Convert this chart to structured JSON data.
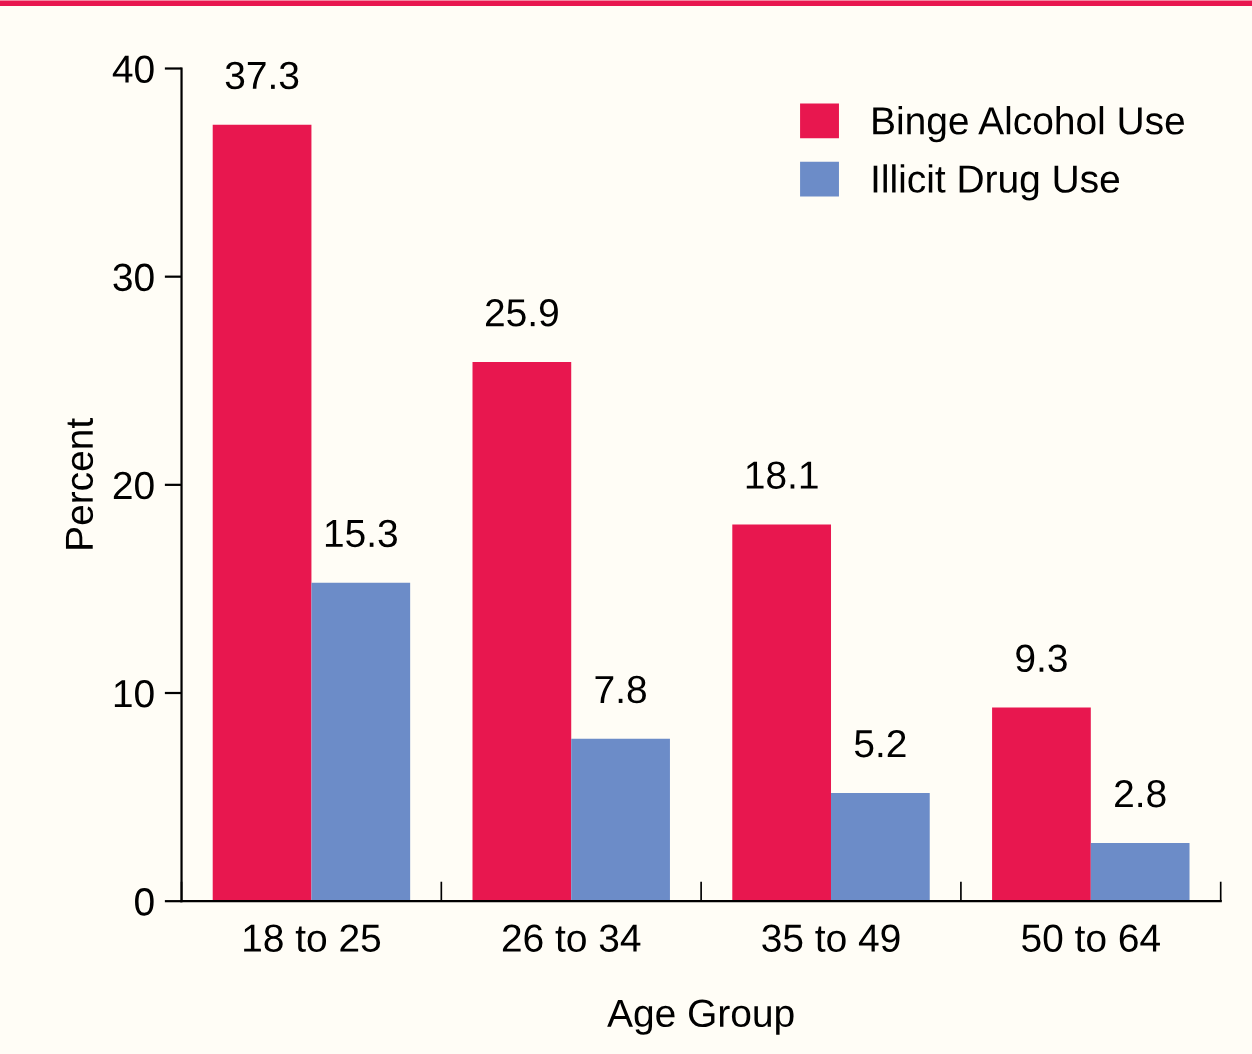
{
  "chart_data": {
    "type": "bar",
    "xlabel": "Age Group",
    "ylabel": "Percent",
    "categories": [
      "18 to 25",
      "26 to 34",
      "35 to 49",
      "50 to 64"
    ],
    "series": [
      {
        "name": "Binge Alcohol Use",
        "color": "#e8174f",
        "values": [
          37.3,
          25.9,
          18.1,
          9.3
        ]
      },
      {
        "name": "Illicit Drug Use",
        "color": "#6c8cc8",
        "values": [
          15.3,
          7.8,
          5.2,
          2.8
        ]
      }
    ],
    "ylim": [
      0,
      40
    ],
    "yticks": [
      0,
      10,
      20,
      30,
      40
    ],
    "data_labels": true,
    "legend": "top right",
    "grid": false
  }
}
